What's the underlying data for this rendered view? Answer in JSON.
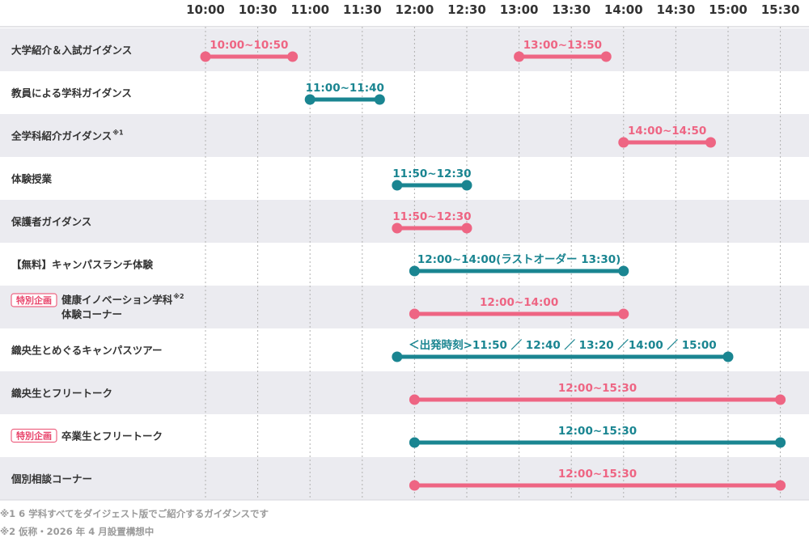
{
  "chart_data": {
    "type": "timeline",
    "time_ticks": [
      "10:00",
      "10:30",
      "11:00",
      "11:30",
      "12:00",
      "12:30",
      "13:00",
      "13:30",
      "14:00",
      "14:30",
      "15:00",
      "15:30"
    ],
    "x_range": [
      "10:00",
      "15:30"
    ],
    "grid": true,
    "rows": [
      {
        "label": "大学紹介＆入試ガイダンス",
        "bars": [
          {
            "start": "10:00",
            "end": "10:50",
            "label": "10:00~10:50",
            "color": "#ee6583"
          },
          {
            "start": "13:00",
            "end": "13:50",
            "label": "13:00~13:50",
            "color": "#ee6583"
          }
        ]
      },
      {
        "label": "教員による学科ガイダンス",
        "bars": [
          {
            "start": "11:00",
            "end": "11:40",
            "label": "11:00~11:40",
            "color": "#1a8591"
          }
        ]
      },
      {
        "label": "全学科紹介ガイダンス",
        "sup": "※1",
        "bars": [
          {
            "start": "14:00",
            "end": "14:50",
            "label": "14:00~14:50",
            "color": "#ee6583"
          }
        ]
      },
      {
        "label": "体験授業",
        "bars": [
          {
            "start": "11:50",
            "end": "12:30",
            "label": "11:50~12:30",
            "color": "#1a8591"
          }
        ]
      },
      {
        "label": "保護者ガイダンス",
        "bars": [
          {
            "start": "11:50",
            "end": "12:30",
            "label": "11:50~12:30",
            "color": "#ee6583"
          }
        ]
      },
      {
        "label": "【無料】キャンパスランチ体験",
        "bars": [
          {
            "start": "12:00",
            "end": "14:00",
            "label": "12:00~14:00(ラストオーダー 13:30)",
            "color": "#1a8591"
          }
        ]
      },
      {
        "label": "健康イノベーション学科",
        "label2": "体験コーナー",
        "badge": "特別企画",
        "sup": "※2",
        "bars": [
          {
            "start": "12:00",
            "end": "14:00",
            "label": "12:00~14:00",
            "color": "#ee6583"
          }
        ]
      },
      {
        "label": "織央生とめぐるキャンパスツアー",
        "bars": [
          {
            "start": "11:50",
            "end": "15:00",
            "label": "＜出発時刻>11:50 ／ 12:40 ／ 13:20 ／14:00 ／ 15:00",
            "color": "#1a8591"
          }
        ]
      },
      {
        "label": "織央生とフリートーク",
        "bars": [
          {
            "start": "12:00",
            "end": "15:30",
            "label": "12:00~15:30",
            "color": "#ee6583"
          }
        ]
      },
      {
        "label": "卒業生とフリートーク",
        "badge": "特別企画",
        "bars": [
          {
            "start": "12:00",
            "end": "15:30",
            "label": "12:00~15:30",
            "color": "#1a8591"
          }
        ]
      },
      {
        "label": "個別相談コーナー",
        "bars": [
          {
            "start": "12:00",
            "end": "15:30",
            "label": "12:00~15:30",
            "color": "#ee6583"
          }
        ]
      }
    ]
  },
  "footnotes": [
    "※1 6 学科すべてをダイジェスト版でご紹介するガイダンスです",
    "※2 仮称・2026 年 4 月設置構想中"
  ],
  "colors": {
    "pink": "#ee6583",
    "teal": "#1a8591",
    "row_stripe": "#ebebf0",
    "grid": "#b0b0b0"
  }
}
